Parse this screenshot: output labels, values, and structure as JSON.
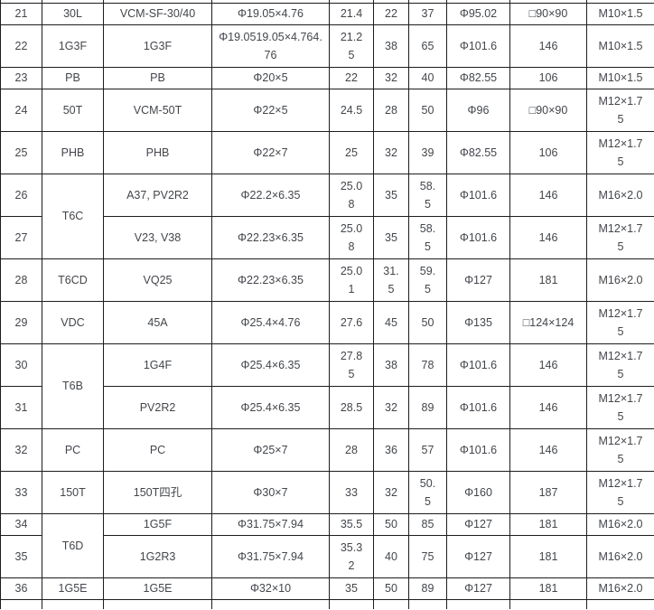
{
  "colors": {
    "border": "#1d1d1d",
    "text": "#43464b",
    "background": "#ffffff"
  },
  "rows": [
    {
      "no": "21",
      "code": "30L",
      "code_rows": 1,
      "model": "VCM-SF-30/40",
      "size": "Φ19.05×4.76",
      "a": "21.4",
      "b": "22",
      "c": "37",
      "dia": "Φ95.02",
      "mount": "□90×90",
      "thread": "M10×1.5",
      "lines": 1
    },
    {
      "no": "22",
      "code": "1G3F",
      "code_rows": 1,
      "model": "1G3F",
      "size": "Φ19.0519.05×4.764.76",
      "a": "21.25",
      "b": "38",
      "c": "65",
      "dia": "Φ101.6",
      "mount": "146",
      "thread": "M10×1.5",
      "lines": 2
    },
    {
      "no": "23",
      "code": "PB",
      "code_rows": 1,
      "model": "PB",
      "size": "Φ20×5",
      "a": "22",
      "b": "32",
      "c": "40",
      "dia": "Φ82.55",
      "mount": "106",
      "thread": "M10×1.5",
      "lines": 1
    },
    {
      "no": "24",
      "code": "50T",
      "code_rows": 1,
      "model": "VCM-50T",
      "size": "Φ22×5",
      "a": "24.5",
      "b": "28",
      "c": "50",
      "dia": "Φ96",
      "mount": "□90×90",
      "thread": "M12×1.75",
      "lines": 2
    },
    {
      "no": "25",
      "code": "PHB",
      "code_rows": 1,
      "model": "PHB",
      "size": "Φ22×7",
      "a": "25",
      "b": "32",
      "c": "39",
      "dia": "Φ82.55",
      "mount": "106",
      "thread": "M12×1.75",
      "lines": 2
    },
    {
      "no": "26",
      "code": "T6C",
      "code_rows": 2,
      "model": "A37, PV2R2",
      "size": "Φ22.2×6.35",
      "a": "25.08",
      "b": "35",
      "c": "58.5",
      "dia": "Φ101.6",
      "mount": "146",
      "thread": "M16×2.0",
      "lines": 2
    },
    {
      "no": "27",
      "code": null,
      "model": "V23, V38",
      "size": "Φ22.23×6.35",
      "a": "25.08",
      "b": "35",
      "c": "58.5",
      "dia": "Φ101.6",
      "mount": "146",
      "thread": "M12×1.75",
      "lines": 2
    },
    {
      "no": "28",
      "code": "T6CD",
      "code_rows": 1,
      "model": "VQ25",
      "size": "Φ22.23×6.35",
      "a": "25.01",
      "b": "31.5",
      "c": "59.5",
      "dia": "Φ127",
      "mount": "181",
      "thread": "M16×2.0",
      "lines": 2
    },
    {
      "no": "29",
      "code": "VDC",
      "code_rows": 1,
      "model": "45A",
      "size": "Φ25.4×4.76",
      "a": "27.6",
      "b": "45",
      "c": "50",
      "dia": "Φ135",
      "mount": "□124×124",
      "thread": "M12×1.75",
      "lines": 2
    },
    {
      "no": "30",
      "code": "T6B",
      "code_rows": 2,
      "model": "1G4F",
      "size": "Φ25.4×6.35",
      "a": "27.85",
      "b": "38",
      "c": "78",
      "dia": "Φ101.6",
      "mount": "146",
      "thread": "M12×1.75",
      "lines": 2
    },
    {
      "no": "31",
      "code": null,
      "model": "PV2R2",
      "size": "Φ25.4×6.35",
      "a": "28.5",
      "b": "32",
      "c": "89",
      "dia": "Φ101.6",
      "mount": "146",
      "thread": "M12×1.75",
      "lines": 2
    },
    {
      "no": "32",
      "code": "PC",
      "code_rows": 1,
      "model": "PC",
      "size": "Φ25×7",
      "a": "28",
      "b": "36",
      "c": "57",
      "dia": "Φ101.6",
      "mount": "146",
      "thread": "M12×1.75",
      "lines": 2
    },
    {
      "no": "33",
      "code": "150T",
      "code_rows": 1,
      "model": "150T四孔",
      "size": "Φ30×7",
      "a": "33",
      "b": "32",
      "c": "50.5",
      "dia": "Φ160",
      "mount": "187",
      "thread": "M12×1.75",
      "lines": 2
    },
    {
      "no": "34",
      "code": "T6D",
      "code_rows": 2,
      "model": "1G5F",
      "size": "Φ31.75×7.94",
      "a": "35.5",
      "b": "50",
      "c": "85",
      "dia": "Φ127",
      "mount": "181",
      "thread": "M16×2.0",
      "lines": 1
    },
    {
      "no": "35",
      "code": null,
      "model": "1G2R3",
      "size": "Φ31.75×7.94",
      "a": "35.32",
      "b": "40",
      "c": "75",
      "dia": "Φ127",
      "mount": "181",
      "thread": "M16×2.0",
      "lines": 2
    },
    {
      "no": "36",
      "code": "1G5E",
      "code_rows": 1,
      "model": "1G5E",
      "size": "Φ32×10",
      "a": "35",
      "b": "50",
      "c": "89",
      "dia": "Φ127",
      "mount": "181",
      "thread": "M16×2.0",
      "lines": 1
    }
  ]
}
